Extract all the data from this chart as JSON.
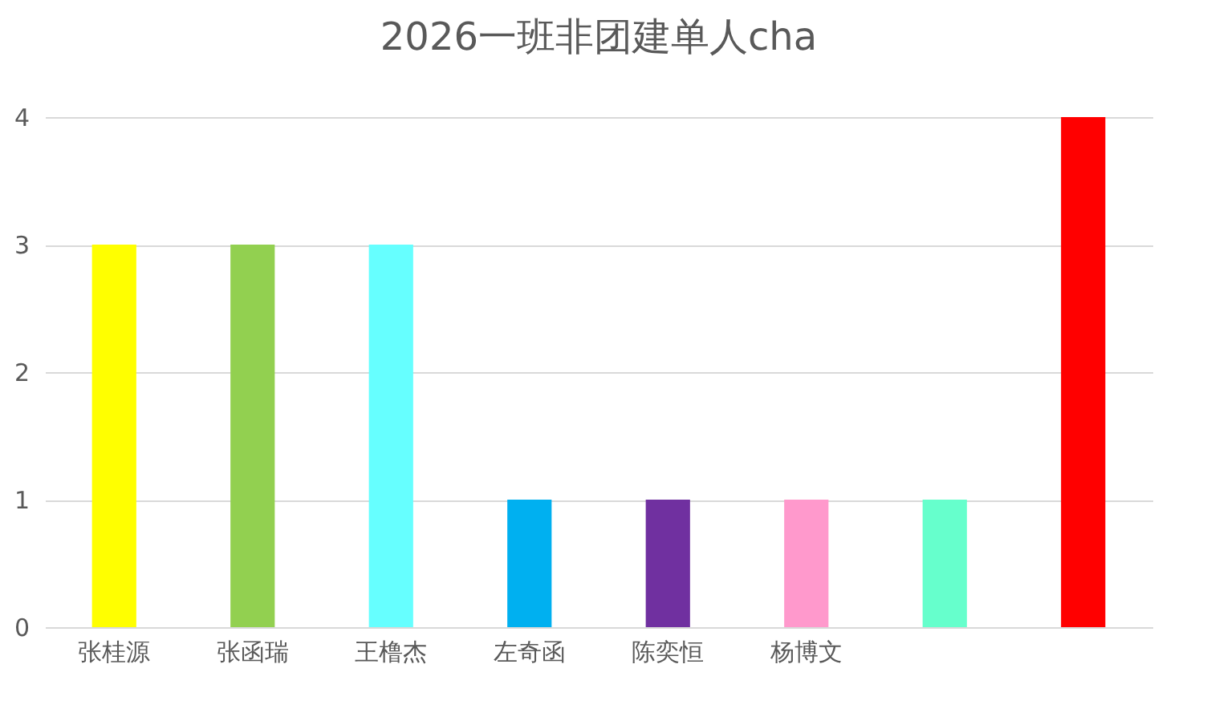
{
  "chart_data": {
    "type": "bar",
    "title": "2026一班非团建单人cha",
    "categories": [
      "张桂源",
      "张函瑞",
      "王橹杰",
      "左奇函",
      "陈奕恒",
      "杨博文",
      null,
      null
    ],
    "values": [
      3,
      3,
      3,
      1,
      1,
      1,
      1,
      4
    ],
    "colors": [
      "#ffff00",
      "#92d050",
      "#66ffff",
      "#00b0f0",
      "#7030a0",
      "#ff99cc",
      "#66ffcc",
      "#ff0000"
    ],
    "ylim": [
      0,
      4
    ],
    "yticks": [
      0,
      1,
      2,
      3,
      4
    ],
    "grid": "y"
  }
}
